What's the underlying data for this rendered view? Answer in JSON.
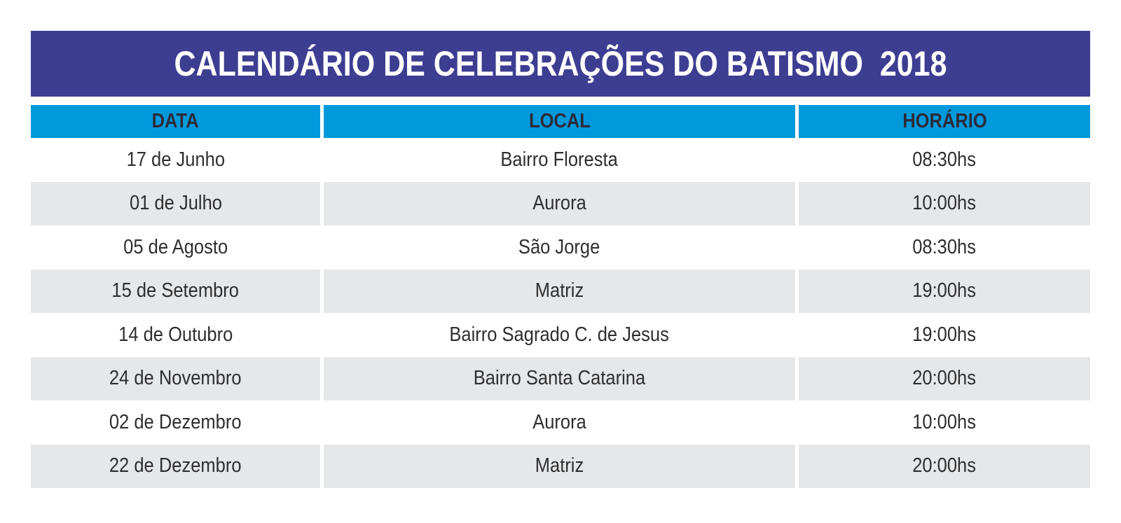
{
  "title": "CALENDÁRIO DE CELEBRAÇÕES DO BATISMO  2018",
  "colors": {
    "title_bg": "#3d3d92",
    "header_bg": "#0099dc",
    "row_stripe": "#e6e7e9",
    "text": "#2e2e2e"
  },
  "headers": {
    "date": "DATA",
    "location": "LOCAL",
    "time": "HORÁRIO"
  },
  "rows": [
    {
      "date": "17 de Junho",
      "location": "Bairro Floresta",
      "time": "08:30hs"
    },
    {
      "date": "01 de Julho",
      "location": "Aurora",
      "time": "10:00hs"
    },
    {
      "date": "05 de Agosto",
      "location": "São Jorge",
      "time": "08:30hs"
    },
    {
      "date": "15 de Setembro",
      "location": "Matriz",
      "time": "19:00hs"
    },
    {
      "date": "14 de Outubro",
      "location": "Bairro Sagrado C. de Jesus",
      "time": "19:00hs"
    },
    {
      "date": "24 de Novembro",
      "location": "Bairro Santa Catarina",
      "time": "20:00hs"
    },
    {
      "date": "02 de Dezembro",
      "location": "Aurora",
      "time": "10:00hs"
    },
    {
      "date": "22 de Dezembro",
      "location": "Matriz",
      "time": "20:00hs"
    }
  ]
}
